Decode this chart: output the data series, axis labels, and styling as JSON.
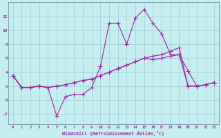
{
  "xlabel": "Windchill (Refroidissement éolien,°C)",
  "background_color": "#c5eef0",
  "grid_color": "#9ecdd4",
  "line_color": "#a020a0",
  "xlim": [
    -0.5,
    23.5
  ],
  "ylim": [
    -3.5,
    14.0
  ],
  "xticks": [
    0,
    1,
    2,
    3,
    4,
    5,
    6,
    7,
    8,
    9,
    10,
    11,
    12,
    13,
    14,
    15,
    16,
    17,
    18,
    19,
    20,
    21,
    22,
    23
  ],
  "yticks": [
    -2,
    0,
    2,
    4,
    6,
    8,
    10,
    12
  ],
  "series1_x": [
    0,
    1,
    2,
    3,
    4,
    5,
    6,
    7,
    8,
    9,
    10,
    11,
    12,
    13,
    14,
    15,
    16,
    17,
    18,
    19,
    20,
    21,
    22,
    23
  ],
  "series1_y": [
    3.5,
    1.8,
    1.8,
    2.0,
    1.8,
    -2.3,
    0.5,
    0.8,
    0.8,
    1.8,
    4.8,
    11.0,
    11.0,
    8.0,
    11.8,
    13.0,
    11.0,
    9.5,
    6.5,
    6.5,
    4.2,
    2.0,
    2.2,
    2.5
  ],
  "series2_x": [
    0,
    1,
    2,
    3,
    4,
    5,
    6,
    7,
    8,
    9,
    10,
    11,
    12,
    13,
    14,
    15,
    16,
    17,
    18,
    19,
    20,
    21,
    22,
    23
  ],
  "series2_y": [
    3.5,
    1.8,
    1.8,
    2.0,
    1.8,
    2.0,
    2.2,
    2.5,
    2.8,
    3.0,
    3.5,
    4.0,
    4.5,
    5.0,
    5.5,
    6.0,
    6.3,
    6.5,
    7.0,
    7.5,
    2.0,
    2.0,
    2.2,
    2.5
  ],
  "series3_x": [
    0,
    1,
    2,
    3,
    4,
    5,
    6,
    7,
    8,
    9,
    10,
    11,
    12,
    13,
    14,
    15,
    16,
    17,
    18,
    19,
    20,
    21,
    22,
    23
  ],
  "series3_y": [
    3.5,
    1.8,
    1.8,
    2.0,
    1.8,
    2.0,
    2.2,
    2.5,
    2.8,
    3.0,
    3.5,
    4.0,
    4.5,
    5.0,
    5.5,
    6.0,
    5.8,
    6.0,
    6.3,
    6.5,
    2.0,
    2.0,
    2.2,
    2.5
  ]
}
